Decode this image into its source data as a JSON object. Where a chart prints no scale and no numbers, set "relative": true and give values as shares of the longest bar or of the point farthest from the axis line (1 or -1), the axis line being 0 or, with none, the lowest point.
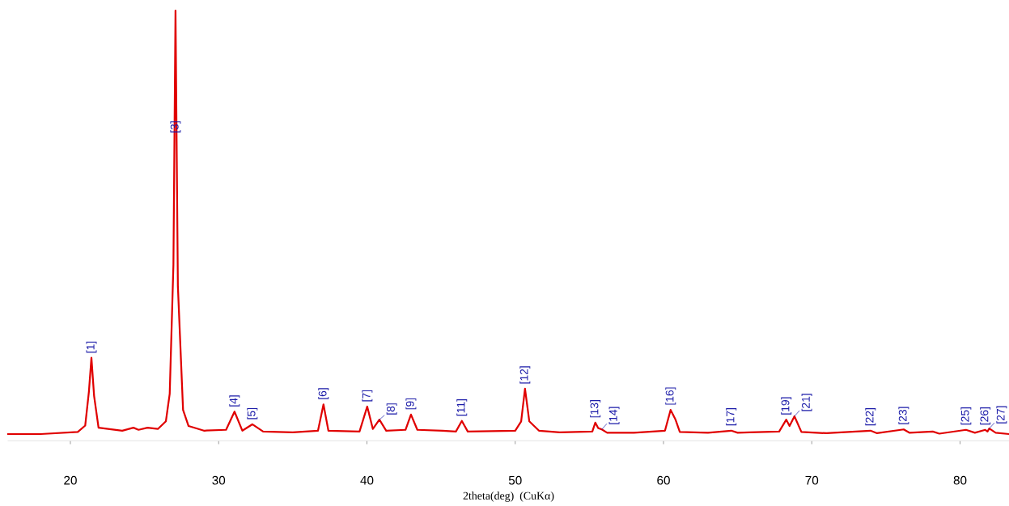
{
  "chart_data": {
    "type": "line",
    "relative": true,
    "xlabel": "2theta(deg)  (CuKα)",
    "xlim": [
      15.8,
      83.3
    ],
    "xticks": [
      20,
      30,
      40,
      50,
      60,
      70,
      80
    ],
    "tick_labels": "x",
    "grid": false,
    "series": [
      {
        "color": "#e00000",
        "x": [
          15.8,
          18.0,
          20.5,
          21.0,
          21.25,
          21.42,
          21.6,
          21.9,
          23.5,
          24.25,
          24.6,
          25.2,
          25.9,
          26.44,
          26.7,
          26.95,
          27.09,
          27.25,
          27.6,
          27.97,
          29.0,
          30.5,
          31.07,
          31.6,
          32.27,
          33.0,
          35.0,
          36.7,
          37.07,
          37.4,
          39.5,
          40.02,
          40.4,
          40.84,
          41.3,
          42.6,
          42.97,
          43.4,
          45.1,
          46.0,
          46.4,
          46.8,
          50.0,
          50.4,
          50.66,
          50.95,
          51.6,
          53.0,
          55.2,
          55.4,
          55.6,
          55.84,
          56.2,
          58.0,
          60.1,
          60.48,
          60.8,
          61.1,
          63.0,
          64.57,
          65.0,
          65.8,
          67.8,
          68.28,
          68.5,
          68.83,
          69.3,
          71.0,
          73.96,
          74.4,
          76.2,
          76.6,
          78.16,
          78.6,
          80.4,
          81.0,
          81.7,
          81.85,
          81.97,
          82.4,
          83.3
        ],
        "values": [
          0.0,
          0.0,
          0.005,
          0.02,
          0.1,
          0.18,
          0.09,
          0.015,
          0.008,
          0.015,
          0.01,
          0.015,
          0.012,
          0.03,
          0.095,
          0.4,
          1.0,
          0.35,
          0.057,
          0.019,
          0.008,
          0.01,
          0.053,
          0.008,
          0.023,
          0.006,
          0.004,
          0.008,
          0.07,
          0.008,
          0.006,
          0.065,
          0.012,
          0.034,
          0.008,
          0.01,
          0.046,
          0.01,
          0.008,
          0.006,
          0.031,
          0.006,
          0.008,
          0.03,
          0.107,
          0.03,
          0.008,
          0.004,
          0.006,
          0.027,
          0.014,
          0.011,
          0.003,
          0.003,
          0.008,
          0.057,
          0.035,
          0.005,
          0.003,
          0.008,
          0.003,
          0.004,
          0.006,
          0.034,
          0.019,
          0.042,
          0.005,
          0.002,
          0.008,
          0.002,
          0.011,
          0.003,
          0.006,
          0.001,
          0.01,
          0.003,
          0.01,
          0.006,
          0.013,
          0.003,
          0.0
        ]
      }
    ],
    "annotations": [
      {
        "text": "[1]",
        "x": 21.42,
        "y": 0.18
      },
      {
        "text": "[3]",
        "x": 27.09,
        "y": 0.7
      },
      {
        "text": "[4]",
        "x": 31.07,
        "y": 0.053
      },
      {
        "text": "[5]",
        "x": 32.27,
        "y": 0.023
      },
      {
        "text": "[6]",
        "x": 37.07,
        "y": 0.07
      },
      {
        "text": "[7]",
        "x": 40.02,
        "y": 0.065
      },
      {
        "text": "[8]",
        "x": 40.84,
        "y": 0.034
      },
      {
        "text": "[9]",
        "x": 42.97,
        "y": 0.046
      },
      {
        "text": "[11]",
        "x": 46.4,
        "y": 0.031
      },
      {
        "text": "[12]",
        "x": 50.66,
        "y": 0.107
      },
      {
        "text": "[13]",
        "x": 55.4,
        "y": 0.027
      },
      {
        "text": "[14]",
        "x": 55.84,
        "y": 0.011
      },
      {
        "text": "[16]",
        "x": 60.48,
        "y": 0.057
      },
      {
        "text": "[17]",
        "x": 64.57,
        "y": 0.008
      },
      {
        "text": "[19]",
        "x": 68.28,
        "y": 0.034
      },
      {
        "text": "[21]",
        "x": 68.83,
        "y": 0.042
      },
      {
        "text": "[22]",
        "x": 73.96,
        "y": 0.008
      },
      {
        "text": "[23]",
        "x": 76.2,
        "y": 0.011
      },
      {
        "text": "[25]",
        "x": 80.4,
        "y": 0.01
      },
      {
        "text": "[26]",
        "x": 81.7,
        "y": 0.01
      },
      {
        "text": "[27]",
        "x": 81.97,
        "y": 0.013
      }
    ]
  }
}
